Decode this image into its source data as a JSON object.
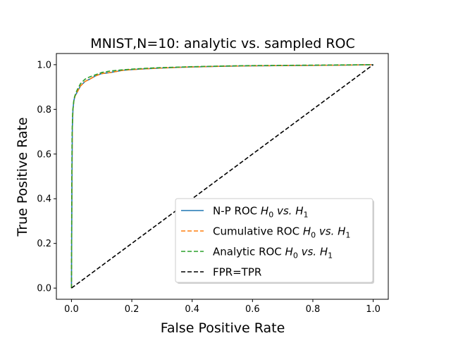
{
  "chart_data": {
    "type": "line",
    "title": "MNIST,N=10: analytic vs. sampled ROC",
    "xlabel": "False Positive Rate",
    "ylabel": "True Positive Rate",
    "xlim": [
      -0.05,
      1.05
    ],
    "ylim": [
      -0.05,
      1.05
    ],
    "xticks": [
      "0.0",
      "0.2",
      "0.4",
      "0.6",
      "0.8",
      "1.0"
    ],
    "yticks": [
      "0.0",
      "0.2",
      "0.4",
      "0.6",
      "0.8",
      "1.0"
    ],
    "grid": false,
    "legend_position": "lower-right",
    "series": [
      {
        "name": "N-P ROC H0 vs. H1",
        "legend_parts": [
          "N-P ROC ",
          "H",
          "0",
          " vs. ",
          "H",
          "1"
        ],
        "color": "#1f77b4",
        "dash": "solid",
        "x": [
          0,
          0.001,
          0.002,
          0.003,
          0.005,
          0.008,
          0.012,
          0.02,
          0.03,
          0.045,
          0.06,
          0.08,
          0.1,
          0.13,
          0.17,
          0.2,
          0.25,
          0.3,
          0.35,
          0.4,
          0.5,
          0.6,
          0.7,
          0.8,
          0.9,
          1.0
        ],
        "y": [
          0,
          0.3,
          0.55,
          0.72,
          0.8,
          0.84,
          0.86,
          0.88,
          0.905,
          0.925,
          0.935,
          0.95,
          0.96,
          0.965,
          0.975,
          0.978,
          0.982,
          0.985,
          0.988,
          0.99,
          0.993,
          0.995,
          0.996,
          0.997,
          0.998,
          1.0
        ]
      },
      {
        "name": "Cumulative ROC H0 vs. H1",
        "legend_parts": [
          "Cumulative ROC ",
          "H",
          "0",
          " vs. ",
          "H",
          "1"
        ],
        "color": "#ff7f0e",
        "dash": "dashed",
        "x": [
          0,
          0.001,
          0.002,
          0.003,
          0.005,
          0.008,
          0.012,
          0.02,
          0.03,
          0.045,
          0.06,
          0.08,
          0.1,
          0.13,
          0.17,
          0.2,
          0.25,
          0.3,
          0.35,
          0.4,
          0.5,
          0.6,
          0.7,
          0.8,
          0.9,
          1.0
        ],
        "y": [
          0,
          0.3,
          0.55,
          0.72,
          0.8,
          0.84,
          0.86,
          0.88,
          0.905,
          0.925,
          0.935,
          0.95,
          0.96,
          0.965,
          0.975,
          0.978,
          0.982,
          0.985,
          0.988,
          0.99,
          0.993,
          0.995,
          0.996,
          0.997,
          0.998,
          1.0
        ]
      },
      {
        "name": "Analytic ROC H0 vs. H1",
        "legend_parts": [
          "Analytic ROC ",
          "H",
          "0",
          " vs. ",
          "H",
          "1"
        ],
        "color": "#2ca02c",
        "dash": "dashed",
        "x": [
          0,
          0.001,
          0.002,
          0.004,
          0.007,
          0.01,
          0.015,
          0.02,
          0.03,
          0.045,
          0.06,
          0.08,
          0.1,
          0.13,
          0.17,
          0.2,
          0.25,
          0.3,
          0.4,
          0.5,
          0.6,
          0.7,
          0.8,
          0.9,
          1.0
        ],
        "y": [
          0,
          0.45,
          0.68,
          0.79,
          0.83,
          0.855,
          0.875,
          0.89,
          0.915,
          0.935,
          0.945,
          0.955,
          0.965,
          0.972,
          0.977,
          0.98,
          0.984,
          0.987,
          0.991,
          0.994,
          0.996,
          0.997,
          0.998,
          0.999,
          1.0
        ]
      },
      {
        "name": "FPR=TPR",
        "legend_parts": [
          "FPR=TPR"
        ],
        "color": "#000000",
        "dash": "dashed",
        "x": [
          0,
          1
        ],
        "y": [
          0,
          1
        ]
      }
    ]
  }
}
